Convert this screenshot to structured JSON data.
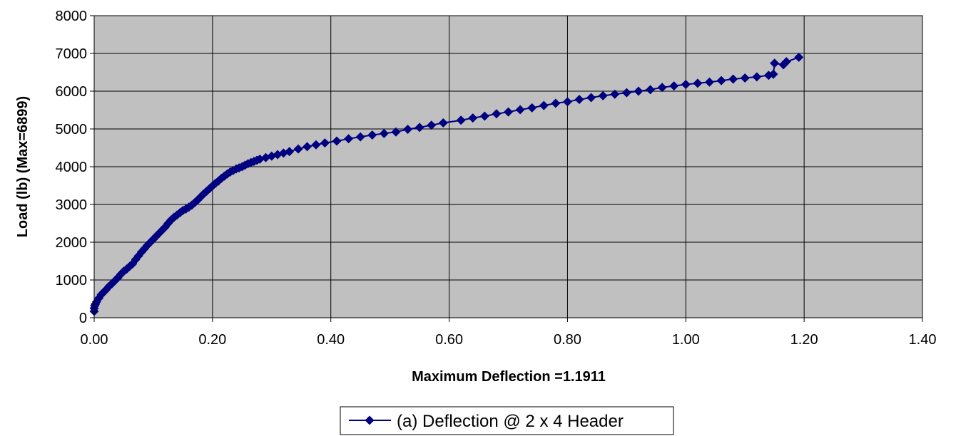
{
  "chart_data": {
    "type": "scatter",
    "xlabel": "Maximum Deflection =1.1911",
    "ylabel": "Load (lb) (Max=6899)",
    "xlim": [
      0,
      1.4
    ],
    "ylim": [
      0,
      8000
    ],
    "x_ticks": [
      "0.00",
      "0.20",
      "0.40",
      "0.60",
      "0.80",
      "1.00",
      "1.20",
      "1.40"
    ],
    "y_ticks": [
      "0",
      "1000",
      "2000",
      "3000",
      "4000",
      "5000",
      "6000",
      "7000",
      "8000"
    ],
    "grid": true,
    "plot_background": "#c0c0c0",
    "series_color": "#000080",
    "legend_position": "bottom-center",
    "series": [
      {
        "name": "(a) Deflection @ 2 x 4 Header",
        "marker": "diamond",
        "line": true,
        "points": [
          [
            0.0,
            170
          ],
          [
            0.0,
            250
          ],
          [
            0.001,
            320
          ],
          [
            0.002,
            360
          ],
          [
            0.004,
            420
          ],
          [
            0.008,
            520
          ],
          [
            0.012,
            610
          ],
          [
            0.016,
            680
          ],
          [
            0.02,
            740
          ],
          [
            0.025,
            830
          ],
          [
            0.03,
            900
          ],
          [
            0.035,
            980
          ],
          [
            0.04,
            1060
          ],
          [
            0.045,
            1150
          ],
          [
            0.05,
            1230
          ],
          [
            0.055,
            1290
          ],
          [
            0.06,
            1360
          ],
          [
            0.065,
            1430
          ],
          [
            0.07,
            1540
          ],
          [
            0.075,
            1640
          ],
          [
            0.08,
            1740
          ],
          [
            0.085,
            1830
          ],
          [
            0.09,
            1920
          ],
          [
            0.095,
            2000
          ],
          [
            0.1,
            2080
          ],
          [
            0.105,
            2160
          ],
          [
            0.11,
            2240
          ],
          [
            0.115,
            2320
          ],
          [
            0.12,
            2400
          ],
          [
            0.125,
            2500
          ],
          [
            0.13,
            2590
          ],
          [
            0.135,
            2660
          ],
          [
            0.14,
            2720
          ],
          [
            0.145,
            2780
          ],
          [
            0.15,
            2840
          ],
          [
            0.155,
            2880
          ],
          [
            0.16,
            2930
          ],
          [
            0.165,
            2980
          ],
          [
            0.17,
            3050
          ],
          [
            0.175,
            3120
          ],
          [
            0.18,
            3200
          ],
          [
            0.185,
            3280
          ],
          [
            0.19,
            3350
          ],
          [
            0.195,
            3420
          ],
          [
            0.2,
            3490
          ],
          [
            0.205,
            3560
          ],
          [
            0.21,
            3620
          ],
          [
            0.215,
            3690
          ],
          [
            0.22,
            3750
          ],
          [
            0.225,
            3810
          ],
          [
            0.23,
            3860
          ],
          [
            0.235,
            3900
          ],
          [
            0.24,
            3940
          ],
          [
            0.245,
            3970
          ],
          [
            0.25,
            4000
          ],
          [
            0.255,
            4040
          ],
          [
            0.26,
            4080
          ],
          [
            0.265,
            4110
          ],
          [
            0.27,
            4140
          ],
          [
            0.275,
            4170
          ],
          [
            0.28,
            4200
          ],
          [
            0.29,
            4240
          ],
          [
            0.3,
            4280
          ],
          [
            0.31,
            4320
          ],
          [
            0.32,
            4360
          ],
          [
            0.33,
            4400
          ],
          [
            0.345,
            4470
          ],
          [
            0.36,
            4530
          ],
          [
            0.375,
            4580
          ],
          [
            0.39,
            4630
          ],
          [
            0.41,
            4680
          ],
          [
            0.43,
            4740
          ],
          [
            0.45,
            4790
          ],
          [
            0.47,
            4840
          ],
          [
            0.49,
            4880
          ],
          [
            0.51,
            4920
          ],
          [
            0.53,
            4990
          ],
          [
            0.55,
            5040
          ],
          [
            0.57,
            5100
          ],
          [
            0.59,
            5160
          ],
          [
            0.62,
            5230
          ],
          [
            0.64,
            5290
          ],
          [
            0.66,
            5340
          ],
          [
            0.68,
            5400
          ],
          [
            0.7,
            5450
          ],
          [
            0.72,
            5510
          ],
          [
            0.74,
            5560
          ],
          [
            0.76,
            5620
          ],
          [
            0.78,
            5680
          ],
          [
            0.8,
            5720
          ],
          [
            0.82,
            5780
          ],
          [
            0.84,
            5830
          ],
          [
            0.86,
            5880
          ],
          [
            0.88,
            5920
          ],
          [
            0.9,
            5960
          ],
          [
            0.92,
            6000
          ],
          [
            0.94,
            6040
          ],
          [
            0.96,
            6100
          ],
          [
            0.98,
            6140
          ],
          [
            1.0,
            6180
          ],
          [
            1.02,
            6210
          ],
          [
            1.04,
            6240
          ],
          [
            1.06,
            6280
          ],
          [
            1.08,
            6320
          ],
          [
            1.1,
            6350
          ],
          [
            1.12,
            6380
          ],
          [
            1.14,
            6420
          ],
          [
            1.148,
            6450
          ],
          [
            1.15,
            6740
          ],
          [
            1.165,
            6700
          ],
          [
            1.17,
            6780
          ],
          [
            1.1911,
            6899
          ]
        ]
      }
    ]
  }
}
